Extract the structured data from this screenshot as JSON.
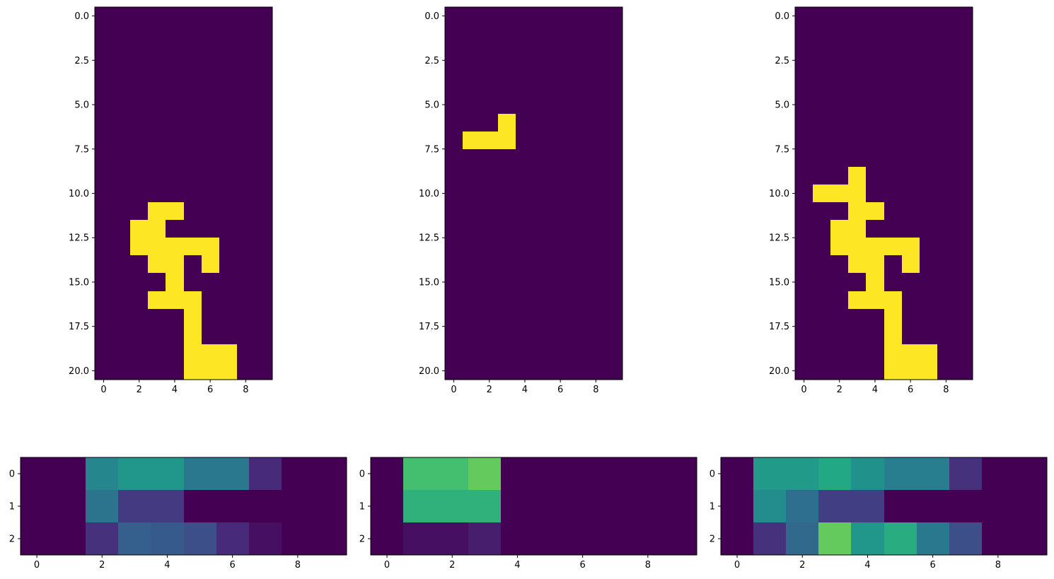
{
  "chart_data": [
    {
      "type": "heatmap",
      "colormap": "viridis",
      "rows": 21,
      "cols": 10,
      "vmin": 0,
      "vmax": 1,
      "xticks": [
        0,
        2,
        4,
        6,
        8
      ],
      "xtick_labels": [
        "0",
        "2",
        "4",
        "6",
        "8"
      ],
      "yticks": [
        0,
        2.5,
        5,
        7.5,
        10,
        12.5,
        15,
        17.5,
        20
      ],
      "ytick_labels": [
        "0.0",
        "2.5",
        "5.0",
        "7.5",
        "10.0",
        "12.5",
        "15.0",
        "17.5",
        "20.0"
      ],
      "cells_on": [
        [
          11,
          3
        ],
        [
          11,
          4
        ],
        [
          12,
          2
        ],
        [
          12,
          3
        ],
        [
          13,
          2
        ],
        [
          13,
          3
        ],
        [
          13,
          4
        ],
        [
          13,
          5
        ],
        [
          13,
          6
        ],
        [
          14,
          3
        ],
        [
          14,
          4
        ],
        [
          14,
          6
        ],
        [
          15,
          4
        ],
        [
          16,
          3
        ],
        [
          16,
          4
        ],
        [
          16,
          5
        ],
        [
          17,
          5
        ],
        [
          18,
          5
        ],
        [
          19,
          5
        ],
        [
          19,
          6
        ],
        [
          19,
          7
        ],
        [
          20,
          5
        ],
        [
          20,
          6
        ],
        [
          20,
          7
        ]
      ]
    },
    {
      "type": "heatmap",
      "colormap": "viridis",
      "rows": 21,
      "cols": 10,
      "vmin": 0,
      "vmax": 1,
      "xticks": [
        0,
        2,
        4,
        6,
        8
      ],
      "xtick_labels": [
        "0",
        "2",
        "4",
        "6",
        "8"
      ],
      "yticks": [
        0,
        2.5,
        5,
        7.5,
        10,
        12.5,
        15,
        17.5,
        20
      ],
      "ytick_labels": [
        "0.0",
        "2.5",
        "5.0",
        "7.5",
        "10.0",
        "12.5",
        "15.0",
        "17.5",
        "20.0"
      ],
      "cells_on": [
        [
          6,
          3
        ],
        [
          7,
          1
        ],
        [
          7,
          2
        ],
        [
          7,
          3
        ]
      ]
    },
    {
      "type": "heatmap",
      "colormap": "viridis",
      "rows": 21,
      "cols": 10,
      "vmin": 0,
      "vmax": 1,
      "xticks": [
        0,
        2,
        4,
        6,
        8
      ],
      "xtick_labels": [
        "0",
        "2",
        "4",
        "6",
        "8"
      ],
      "yticks": [
        0,
        2.5,
        5,
        7.5,
        10,
        12.5,
        15,
        17.5,
        20
      ],
      "ytick_labels": [
        "0.0",
        "2.5",
        "5.0",
        "7.5",
        "10.0",
        "12.5",
        "15.0",
        "17.5",
        "20.0"
      ],
      "cells_on": [
        [
          9,
          3
        ],
        [
          10,
          1
        ],
        [
          10,
          2
        ],
        [
          10,
          3
        ],
        [
          11,
          3
        ],
        [
          11,
          4
        ],
        [
          12,
          2
        ],
        [
          12,
          3
        ],
        [
          13,
          2
        ],
        [
          13,
          3
        ],
        [
          13,
          4
        ],
        [
          13,
          5
        ],
        [
          13,
          6
        ],
        [
          14,
          3
        ],
        [
          14,
          4
        ],
        [
          14,
          6
        ],
        [
          15,
          4
        ],
        [
          16,
          3
        ],
        [
          16,
          4
        ],
        [
          16,
          5
        ],
        [
          17,
          5
        ],
        [
          18,
          5
        ],
        [
          19,
          5
        ],
        [
          19,
          6
        ],
        [
          19,
          7
        ],
        [
          20,
          5
        ],
        [
          20,
          6
        ],
        [
          20,
          7
        ]
      ]
    },
    {
      "type": "heatmap",
      "colormap": "viridis",
      "rows": 3,
      "cols": 10,
      "vmin": 0,
      "vmax": 1,
      "xticks": [
        0,
        2,
        4,
        6,
        8
      ],
      "xtick_labels": [
        "0",
        "2",
        "4",
        "6",
        "8"
      ],
      "yticks": [
        0,
        1,
        2
      ],
      "ytick_labels": [
        "0",
        "1",
        "2"
      ],
      "values": [
        [
          0,
          0,
          0.46,
          0.52,
          0.52,
          0.4,
          0.4,
          0.12,
          0,
          0
        ],
        [
          0,
          0,
          0.38,
          0.17,
          0.17,
          0,
          0,
          0,
          0,
          0
        ],
        [
          0,
          0,
          0.14,
          0.3,
          0.28,
          0.24,
          0.12,
          0.04,
          0,
          0
        ]
      ]
    },
    {
      "type": "heatmap",
      "colormap": "viridis",
      "rows": 3,
      "cols": 10,
      "vmin": 0,
      "vmax": 1,
      "xticks": [
        0,
        2,
        4,
        6,
        8
      ],
      "xtick_labels": [
        "0",
        "2",
        "4",
        "6",
        "8"
      ],
      "yticks": [
        0,
        1,
        2
      ],
      "ytick_labels": [
        "0",
        "1",
        "2"
      ],
      "values": [
        [
          0,
          0.7,
          0.7,
          0.76,
          0,
          0,
          0,
          0,
          0,
          0
        ],
        [
          0,
          0.64,
          0.64,
          0.64,
          0,
          0,
          0,
          0,
          0,
          0
        ],
        [
          0,
          0.04,
          0.04,
          0.08,
          0,
          0,
          0,
          0,
          0,
          0
        ]
      ]
    },
    {
      "type": "heatmap",
      "colormap": "viridis",
      "rows": 3,
      "cols": 10,
      "vmin": 0,
      "vmax": 1,
      "xticks": [
        0,
        2,
        4,
        6,
        8
      ],
      "xtick_labels": [
        "0",
        "2",
        "4",
        "6",
        "8"
      ],
      "yticks": [
        0,
        1,
        2
      ],
      "ytick_labels": [
        "0",
        "1",
        "2"
      ],
      "values": [
        [
          0,
          0.54,
          0.54,
          0.6,
          0.5,
          0.42,
          0.42,
          0.14,
          0,
          0
        ],
        [
          0,
          0.48,
          0.36,
          0.18,
          0.18,
          0,
          0,
          0,
          0,
          0
        ],
        [
          0,
          0.14,
          0.34,
          0.76,
          0.52,
          0.62,
          0.4,
          0.24,
          0,
          0
        ]
      ]
    }
  ]
}
